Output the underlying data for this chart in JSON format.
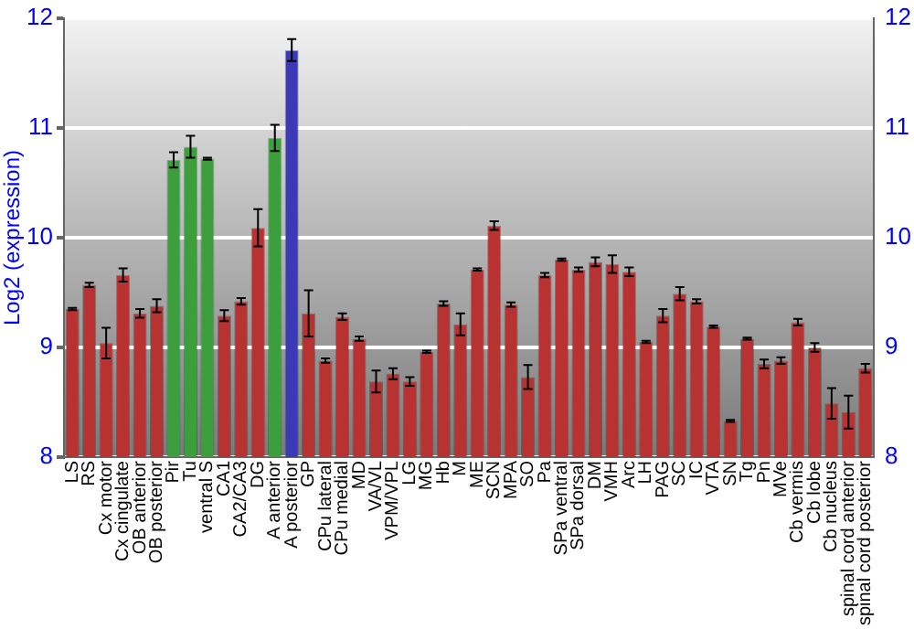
{
  "chart_data": {
    "type": "bar",
    "ylabel": "Log2 (expression)",
    "categories": [
      "LS",
      "RS",
      "Cx motor",
      "Cx cingulate",
      "OB anterior",
      "OB posterior",
      "Pir",
      "Tu",
      "ventral S",
      "CA1",
      "CA2/CA3",
      "DG",
      "A anterior",
      "A posterior",
      "GP",
      "CPu lateral",
      "CPu medial",
      "MD",
      "VA/VL",
      "VPM/VPL",
      "LG",
      "MG",
      "Hb",
      "M",
      "ME",
      "SCN",
      "MPA",
      "SO",
      "Pa",
      "SPa ventral",
      "SPa dorsal",
      "DM",
      "VMH",
      "Arc",
      "LH",
      "PAG",
      "SC",
      "IC",
      "VTA",
      "SN",
      "Tg",
      "Pn",
      "MVe",
      "Cb vermis",
      "Cb lobe",
      "Cb nucleus",
      "spinal cord anterior",
      "spinal cord posterior"
    ],
    "values": [
      9.35,
      9.57,
      9.04,
      9.66,
      9.31,
      9.38,
      10.71,
      10.83,
      10.72,
      9.29,
      9.42,
      10.09,
      10.91,
      11.71,
      9.31,
      8.88,
      9.28,
      9.08,
      8.69,
      8.76,
      8.69,
      8.96,
      9.4,
      9.21,
      9.71,
      10.11,
      9.39,
      8.73,
      9.66,
      9.8,
      9.71,
      9.78,
      9.76,
      9.69,
      9.05,
      9.29,
      9.49,
      9.42,
      9.19,
      8.33,
      9.08,
      8.85,
      8.88,
      9.23,
      9.0,
      8.49,
      8.41,
      8.81
    ],
    "errors": [
      0.01,
      0.02,
      0.14,
      0.06,
      0.04,
      0.06,
      0.07,
      0.1,
      0.01,
      0.05,
      0.03,
      0.17,
      0.12,
      0.1,
      0.21,
      0.02,
      0.03,
      0.02,
      0.1,
      0.05,
      0.04,
      0.01,
      0.02,
      0.1,
      0.01,
      0.04,
      0.02,
      0.11,
      0.02,
      0.01,
      0.02,
      0.04,
      0.08,
      0.04,
      0.01,
      0.06,
      0.06,
      0.02,
      0.01,
      0.01,
      0.01,
      0.04,
      0.03,
      0.03,
      0.04,
      0.14,
      0.15,
      0.04
    ],
    "colors": [
      "#b83232",
      "#b83232",
      "#b83232",
      "#b83232",
      "#b83232",
      "#b83232",
      "#3c9e3c",
      "#3c9e3c",
      "#3c9e3c",
      "#b83232",
      "#b83232",
      "#b83232",
      "#3c9e3c",
      "#3a3ab8",
      "#b83232",
      "#b83232",
      "#b83232",
      "#b83232",
      "#b83232",
      "#b83232",
      "#b83232",
      "#b83232",
      "#b83232",
      "#b83232",
      "#b83232",
      "#b83232",
      "#b83232",
      "#b83232",
      "#b83232",
      "#b83232",
      "#b83232",
      "#b83232",
      "#b83232",
      "#b83232",
      "#b83232",
      "#b83232",
      "#b83232",
      "#b83232",
      "#b83232",
      "#b83232",
      "#b83232",
      "#b83232",
      "#b83232",
      "#b83232",
      "#b83232",
      "#b83232",
      "#b83232",
      "#b83232"
    ],
    "ylim": [
      8,
      12
    ],
    "yticks": [
      8,
      9,
      10,
      11,
      12
    ],
    "y2lim": [
      8,
      12
    ],
    "y2ticks": [
      8,
      9,
      10,
      11,
      12
    ],
    "grid": "y",
    "legend": false
  }
}
